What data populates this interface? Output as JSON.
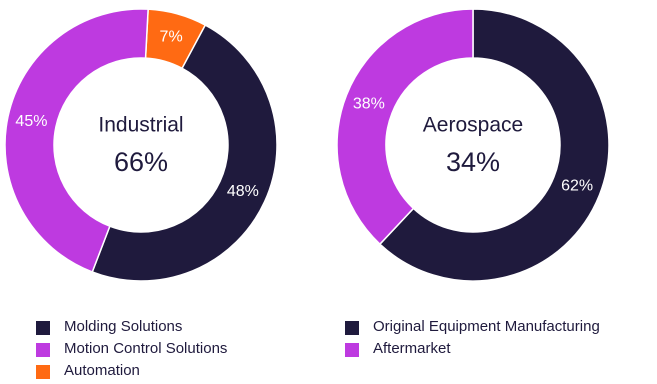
{
  "chart_data": [
    {
      "type": "pie",
      "center_label": "Industrial",
      "center_value": "66%",
      "slices": [
        {
          "name": "Automation",
          "value": 7,
          "label": "7%",
          "color": "#ff6a13"
        },
        {
          "name": "Molding Solutions",
          "value": 48,
          "label": "48%",
          "color": "#1f1a3d"
        },
        {
          "name": "Motion Control Solutions",
          "value": 45,
          "label": "45%",
          "color": "#be3ae0"
        }
      ],
      "legend": [
        "Molding Solutions",
        "Motion Control Solutions",
        "Automation"
      ],
      "legend_placement": "bottom"
    },
    {
      "type": "pie",
      "center_label": "Aerospace",
      "center_value": "34%",
      "slices": [
        {
          "name": "Original Equipment Manufacturing",
          "value": 62,
          "label": "62%",
          "color": "#1f1a3d"
        },
        {
          "name": "Aftermarket",
          "value": 38,
          "label": "38%",
          "color": "#be3ae0"
        }
      ],
      "legend": [
        "Original Equipment Manufacturing",
        "Aftermarket"
      ],
      "legend_placement": "bottom"
    }
  ]
}
